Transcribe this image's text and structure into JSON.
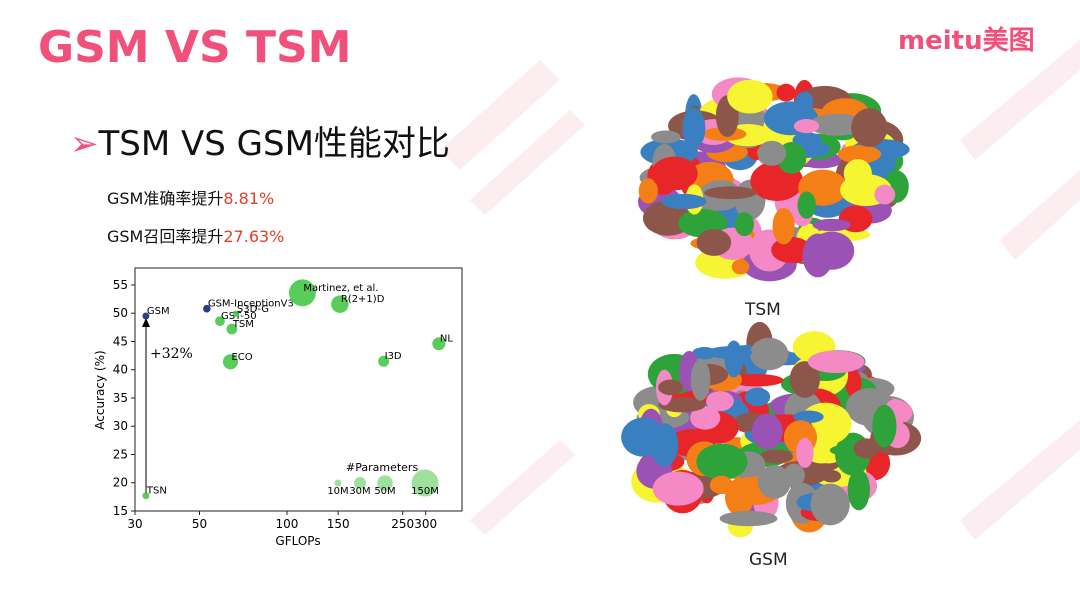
{
  "header": {
    "title": "GSM VS TSM",
    "logo": "meitu美图"
  },
  "heading": "TSM VS GSM性能对比",
  "stats": [
    {
      "text": "GSM准确率提升",
      "highlight": "8.81%"
    },
    {
      "text": "GSM召回率提升",
      "highlight": "27.63%"
    }
  ],
  "chart_data": {
    "type": "scatter",
    "x_label": "GFLOPs",
    "y_label": "Accuracy (%)",
    "log_x": true,
    "point_labels": [
      "GSM",
      "TSN",
      "GSM-InceptionV3",
      "GST-50",
      "S3D-G",
      "TSM",
      "ECO",
      "Martinez, et al.",
      "R(2+1)D",
      "I3D",
      "NL"
    ],
    "x": [
      32.7,
      32.7,
      53,
      58.8,
      66.7,
      64.6,
      63.9,
      113,
      152,
      215,
      333
    ],
    "values": [
      49.5,
      17.7,
      50.8,
      48.6,
      49.9,
      47.2,
      41.4,
      53.6,
      51.6,
      41.5,
      44.6
    ],
    "sizes": [
      10,
      10,
      12,
      20,
      8,
      24,
      47,
      150,
      63,
      25,
      35
    ],
    "colors": [
      "#0a1a6e",
      "#3cc43c",
      "#0a1a6e",
      "#3cc43c",
      "#3cc43c",
      "#3cc43c",
      "#3cc43c",
      "#3cc43c",
      "#3cc43c",
      "#3cc43c",
      "#3cc43c"
    ],
    "xlim": [
      30,
      400
    ],
    "ylim": [
      15,
      58
    ],
    "xticks": [
      30,
      50,
      100,
      150,
      250,
      300
    ],
    "yticks": [
      15,
      20,
      25,
      30,
      35,
      40,
      45,
      50,
      55
    ],
    "size_legend_title": "#Parameters",
    "size_legend": [
      {
        "value": 10,
        "label": "10M"
      },
      {
        "value": 30,
        "label": "30M"
      },
      {
        "value": 50,
        "label": "50M"
      },
      {
        "value": 150,
        "label": "150M"
      }
    ],
    "annotation": "+32%"
  },
  "images": [
    {
      "caption": "TSM"
    },
    {
      "caption": "GSM"
    }
  ]
}
